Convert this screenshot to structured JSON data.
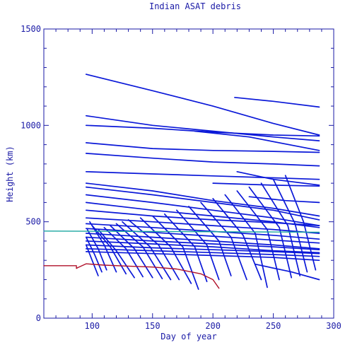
{
  "chart_data": {
    "type": "scatter",
    "title": "Indian ASAT debris",
    "xlabel": "Day of year",
    "ylabel": "Height (km)",
    "xlim": [
      60,
      300
    ],
    "ylim": [
      0,
      1500
    ],
    "xticks": [
      100,
      150,
      200,
      250,
      300
    ],
    "yticks": [
      0,
      500,
      1000,
      1500
    ],
    "grid": false,
    "legend": "none",
    "colors": {
      "debris": "#0a18d8",
      "reference_orbit": "#1aa6a0",
      "target_satellite": "#b0102a",
      "text": "#1a1aa6"
    },
    "series": [
      {
        "color_key": "reference_orbit",
        "x": [
          60,
          288
        ],
        "y": [
          452,
          446
        ]
      },
      {
        "color_key": "target_satellite",
        "x": [
          60,
          87,
          87,
          88,
          95,
          110,
          130,
          150,
          170,
          190,
          200,
          205
        ],
        "y": [
          272,
          272,
          258,
          262,
          282,
          275,
          270,
          265,
          255,
          230,
          200,
          155
        ]
      },
      {
        "color_key": "debris",
        "x": [
          95,
          150,
          200,
          250,
          288
        ],
        "y": [
          1265,
          1180,
          1100,
          1010,
          950
        ]
      },
      {
        "color_key": "debris",
        "x": [
          218,
          250,
          288
        ],
        "y": [
          1145,
          1125,
          1095
        ]
      },
      {
        "color_key": "debris",
        "x": [
          95,
          150,
          200,
          250,
          288
        ],
        "y": [
          1050,
          1000,
          970,
          940,
          920
        ]
      },
      {
        "color_key": "debris",
        "x": [
          95,
          150,
          200,
          250,
          288
        ],
        "y": [
          1000,
          985,
          965,
          950,
          945
        ]
      },
      {
        "color_key": "debris",
        "x": [
          95,
          150,
          200,
          250,
          288
        ],
        "y": [
          910,
          880,
          870,
          865,
          860
        ]
      },
      {
        "color_key": "debris",
        "x": [
          185,
          230,
          288
        ],
        "y": [
          970,
          940,
          870
        ]
      },
      {
        "color_key": "debris",
        "x": [
          95,
          150,
          200,
          250,
          288
        ],
        "y": [
          855,
          830,
          810,
          800,
          790
        ]
      },
      {
        "color_key": "debris",
        "x": [
          95,
          150,
          200,
          250,
          288
        ],
        "y": [
          760,
          748,
          738,
          728,
          720
        ]
      },
      {
        "color_key": "debris",
        "x": [
          95,
          150,
          200,
          250,
          288
        ],
        "y": [
          700,
          660,
          610,
          570,
          530
        ]
      },
      {
        "color_key": "debris",
        "x": [
          95,
          150,
          200,
          250,
          288
        ],
        "y": [
          680,
          640,
          600,
          560,
          510
        ]
      },
      {
        "color_key": "debris",
        "x": [
          95,
          150,
          200,
          250,
          288
        ],
        "y": [
          640,
          600,
          560,
          520,
          480
        ]
      },
      {
        "color_key": "debris",
        "x": [
          95,
          150,
          200,
          250,
          288
        ],
        "y": [
          600,
          560,
          530,
          500,
          470
        ]
      },
      {
        "color_key": "debris",
        "x": [
          95,
          150,
          200,
          250,
          288
        ],
        "y": [
          560,
          530,
          510,
          495,
          480
        ]
      },
      {
        "color_key": "debris",
        "x": [
          95,
          150,
          200,
          250,
          288
        ],
        "y": [
          520,
          500,
          480,
          460,
          440
        ]
      },
      {
        "color_key": "debris",
        "x": [
          95,
          150,
          200,
          250,
          288
        ],
        "y": [
          490,
          470,
          450,
          430,
          410
        ]
      },
      {
        "color_key": "debris",
        "x": [
          95,
          150,
          200,
          250,
          288
        ],
        "y": [
          465,
          445,
          425,
          405,
          390
        ]
      },
      {
        "color_key": "debris",
        "x": [
          95,
          150,
          200,
          250,
          288
        ],
        "y": [
          440,
          420,
          400,
          380,
          360
        ]
      },
      {
        "color_key": "debris",
        "x": [
          95,
          150,
          200,
          250,
          288
        ],
        "y": [
          420,
          400,
          385,
          370,
          355
        ]
      },
      {
        "color_key": "debris",
        "x": [
          95,
          150,
          200,
          250,
          288
        ],
        "y": [
          400,
          385,
          370,
          350,
          340
        ]
      },
      {
        "color_key": "debris",
        "x": [
          95,
          150,
          200,
          250,
          288
        ],
        "y": [
          380,
          365,
          355,
          345,
          335
        ]
      },
      {
        "color_key": "debris",
        "x": [
          95,
          150,
          200,
          250,
          288
        ],
        "y": [
          360,
          350,
          340,
          330,
          320
        ]
      },
      {
        "color_key": "debris",
        "x": [
          95,
          150,
          200,
          250,
          288
        ],
        "y": [
          345,
          335,
          325,
          315,
          300
        ]
      },
      {
        "color_key": "debris",
        "x": [
          200,
          250,
          288
        ],
        "y": [
          700,
          690,
          685
        ]
      },
      {
        "color_key": "debris",
        "x": [
          220,
          250,
          288
        ],
        "y": [
          760,
          720,
          690
        ]
      },
      {
        "color_key": "debris",
        "x": [
          230,
          260,
          288
        ],
        "y": [
          630,
          610,
          600
        ]
      },
      {
        "color_key": "debris",
        "x": [
          235,
          265,
          288
        ],
        "y": [
          280,
          240,
          200
        ]
      },
      {
        "color_key": "debris",
        "x": [
          95,
          100,
          105
        ],
        "y": [
          380,
          300,
          220
        ]
      },
      {
        "color_key": "debris",
        "x": [
          95,
          102,
          108
        ],
        "y": [
          420,
          330,
          240
        ]
      },
      {
        "color_key": "debris",
        "x": [
          96,
          105,
          112
        ],
        "y": [
          460,
          360,
          250
        ]
      },
      {
        "color_key": "debris",
        "x": [
          98,
          110,
          120
        ],
        "y": [
          500,
          380,
          240
        ]
      },
      {
        "color_key": "debris",
        "x": [
          100,
          115,
          128
        ],
        "y": [
          480,
          370,
          230
        ]
      },
      {
        "color_key": "debris",
        "x": [
          105,
          120,
          135
        ],
        "y": [
          460,
          350,
          210
        ]
      },
      {
        "color_key": "debris",
        "x": [
          110,
          128,
          142
        ],
        "y": [
          470,
          360,
          215
        ]
      },
      {
        "color_key": "debris",
        "x": [
          115,
          135,
          150
        ],
        "y": [
          480,
          360,
          210
        ]
      },
      {
        "color_key": "debris",
        "x": [
          120,
          142,
          158
        ],
        "y": [
          490,
          370,
          205
        ]
      },
      {
        "color_key": "debris",
        "x": [
          125,
          148,
          165
        ],
        "y": [
          500,
          370,
          200
        ]
      },
      {
        "color_key": "debris",
        "x": [
          130,
          155,
          172
        ],
        "y": [
          510,
          380,
          200
        ]
      },
      {
        "color_key": "debris",
        "x": [
          140,
          165,
          182
        ],
        "y": [
          520,
          370,
          180
        ]
      },
      {
        "color_key": "debris",
        "x": [
          150,
          175,
          188
        ],
        "y": [
          530,
          370,
          150
        ]
      },
      {
        "color_key": "debris",
        "x": [
          160,
          185,
          195
        ],
        "y": [
          540,
          370,
          190
        ]
      },
      {
        "color_key": "debris",
        "x": [
          170,
          195,
          205
        ],
        "y": [
          560,
          380,
          200
        ]
      },
      {
        "color_key": "debris",
        "x": [
          180,
          205,
          215
        ],
        "y": [
          580,
          400,
          220
        ]
      },
      {
        "color_key": "debris",
        "x": [
          190,
          215,
          228
        ],
        "y": [
          600,
          420,
          200
        ]
      },
      {
        "color_key": "debris",
        "x": [
          200,
          225,
          240
        ],
        "y": [
          620,
          430,
          200
        ]
      },
      {
        "color_key": "debris",
        "x": [
          210,
          235,
          245
        ],
        "y": [
          640,
          440,
          160
        ]
      },
      {
        "color_key": "debris",
        "x": [
          220,
          245,
          255
        ],
        "y": [
          660,
          460,
          200
        ]
      },
      {
        "color_key": "debris",
        "x": [
          230,
          255,
          265
        ],
        "y": [
          680,
          470,
          210
        ]
      },
      {
        "color_key": "debris",
        "x": [
          240,
          262,
          272
        ],
        "y": [
          700,
          480,
          220
        ]
      },
      {
        "color_key": "debris",
        "x": [
          250,
          268,
          278
        ],
        "y": [
          720,
          490,
          240
        ]
      },
      {
        "color_key": "debris",
        "x": [
          260,
          275,
          285
        ],
        "y": [
          740,
          500,
          250
        ]
      }
    ]
  }
}
